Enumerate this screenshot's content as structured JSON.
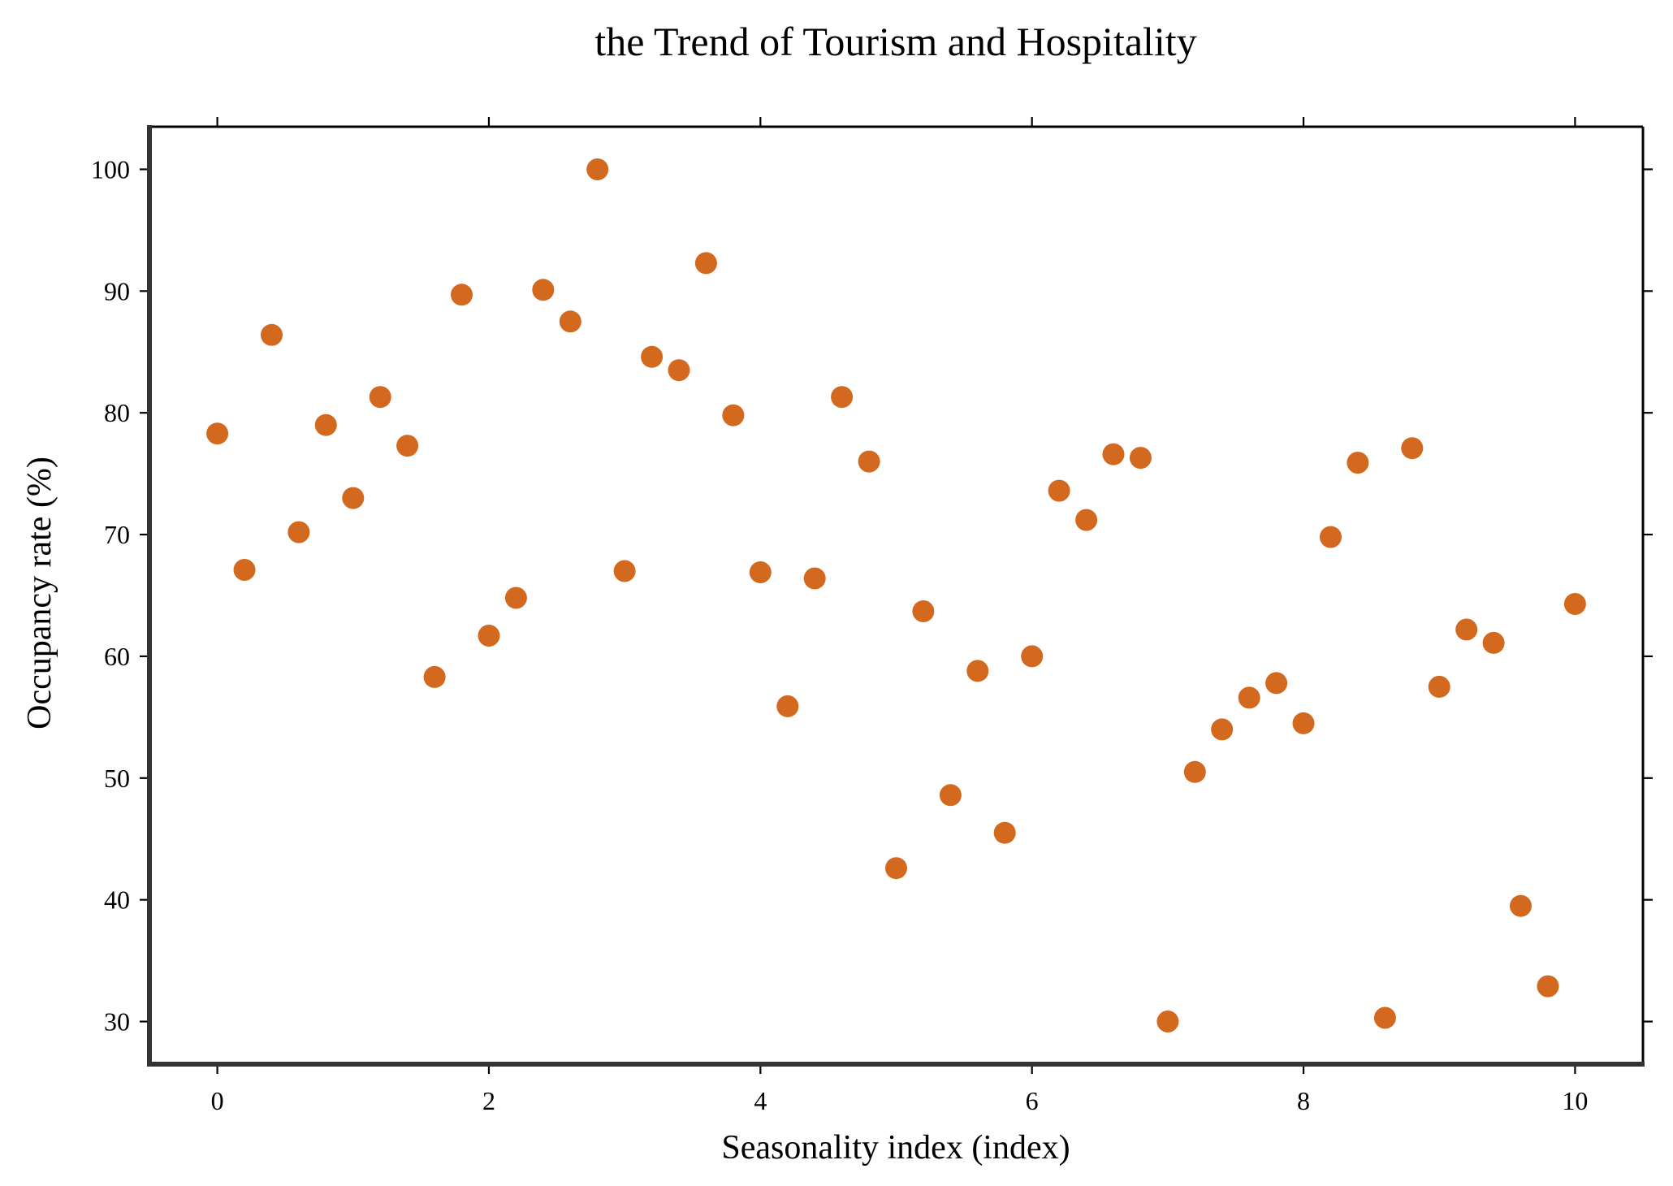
{
  "chart_data": {
    "type": "scatter",
    "title": "the Trend of Tourism and Hospitality",
    "xlabel": "Seasonality index (index)",
    "ylabel": "Occupancy rate (%)",
    "xlim": [
      -0.5,
      10.5
    ],
    "ylim": [
      26.5,
      103.5
    ],
    "xticks": [
      0,
      2,
      4,
      6,
      8,
      10
    ],
    "yticks": [
      30,
      40,
      50,
      60,
      70,
      80,
      90,
      100
    ],
    "grid": false,
    "marker_color": "#d2691e",
    "series": [
      {
        "x": [
          0.0,
          0.2,
          0.4,
          0.6,
          0.8,
          1.0,
          1.2,
          1.4,
          1.6,
          1.8,
          2.0,
          2.2,
          2.4,
          2.6,
          2.8,
          3.0,
          3.2,
          3.4,
          3.6,
          3.8,
          4.0,
          4.2,
          4.4,
          4.6,
          4.8,
          5.0,
          5.2,
          5.4,
          5.6,
          5.8,
          6.0,
          6.2,
          6.4,
          6.6,
          6.8,
          7.0,
          7.2,
          7.4,
          7.6,
          7.8,
          8.0,
          8.2,
          8.4,
          8.6,
          8.8,
          9.0,
          9.2,
          9.4,
          9.6,
          9.8,
          10.0
        ],
        "y": [
          78.3,
          67.1,
          86.4,
          70.2,
          79.0,
          73.0,
          81.3,
          77.3,
          58.3,
          89.7,
          61.7,
          64.8,
          90.1,
          87.5,
          100.0,
          67.0,
          84.6,
          83.5,
          92.3,
          79.8,
          66.9,
          55.9,
          66.4,
          81.3,
          76.0,
          42.6,
          63.7,
          48.6,
          58.8,
          45.5,
          60.0,
          73.6,
          71.2,
          76.6,
          76.3,
          30.0,
          50.5,
          54.0,
          56.6,
          57.8,
          54.5,
          69.8,
          75.9,
          30.3,
          77.1,
          57.5,
          62.2,
          61.1,
          39.5,
          32.9,
          64.3
        ]
      }
    ]
  }
}
